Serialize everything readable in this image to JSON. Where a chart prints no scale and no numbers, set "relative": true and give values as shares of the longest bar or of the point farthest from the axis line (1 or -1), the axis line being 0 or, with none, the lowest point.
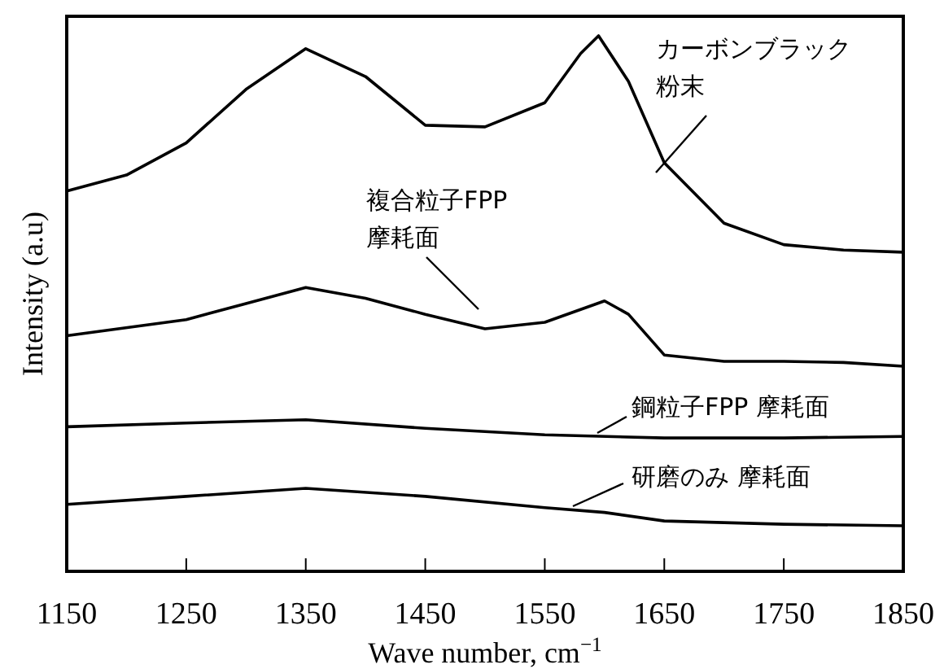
{
  "chart_data": {
    "type": "line",
    "relative": true,
    "xlabel": "Wave number, cm$^{−1}$",
    "ylabel": "Intensity (a.u)",
    "xlim": [
      1150,
      1850
    ],
    "xticks": [
      1150,
      1250,
      1350,
      1450,
      1550,
      1650,
      1750,
      1850
    ],
    "grid": false,
    "marker": "none",
    "line_style": "solid",
    "series": [
      {
        "name": "カーボンブラック粉末",
        "color": "#000000",
        "x": [
          1150,
          1200,
          1250,
          1300,
          1350,
          1400,
          1450,
          1500,
          1550,
          1580,
          1595,
          1620,
          1650,
          1700,
          1750,
          1800,
          1850
        ],
        "values": [
          0.71,
          0.74,
          0.8,
          0.9,
          0.976,
          0.924,
          0.833,
          0.83,
          0.875,
          0.967,
          1.0,
          0.915,
          0.763,
          0.65,
          0.61,
          0.6,
          0.596
        ]
      },
      {
        "name": "複合粒子FPP摩耗面",
        "color": "#000000",
        "x": [
          1150,
          1250,
          1300,
          1350,
          1400,
          1450,
          1500,
          1550,
          1600,
          1620,
          1650,
          1700,
          1750,
          1800,
          1850
        ],
        "values": [
          0.44,
          0.47,
          0.5,
          0.53,
          0.51,
          0.48,
          0.453,
          0.465,
          0.505,
          0.48,
          0.404,
          0.392,
          0.392,
          0.39,
          0.383
        ]
      },
      {
        "name": "鋼粒子FPP 摩耗面",
        "color": "#000000",
        "x": [
          1150,
          1250,
          1350,
          1450,
          1550,
          1650,
          1750,
          1850
        ],
        "values": [
          0.27,
          0.277,
          0.283,
          0.267,
          0.255,
          0.249,
          0.249,
          0.252
        ]
      },
      {
        "name": "研磨のみ 摩耗面",
        "color": "#000000",
        "x": [
          1150,
          1250,
          1350,
          1450,
          1550,
          1600,
          1650,
          1750,
          1850
        ],
        "values": [
          0.125,
          0.14,
          0.155,
          0.14,
          0.119,
          0.11,
          0.094,
          0.088,
          0.085
        ]
      }
    ]
  }
}
